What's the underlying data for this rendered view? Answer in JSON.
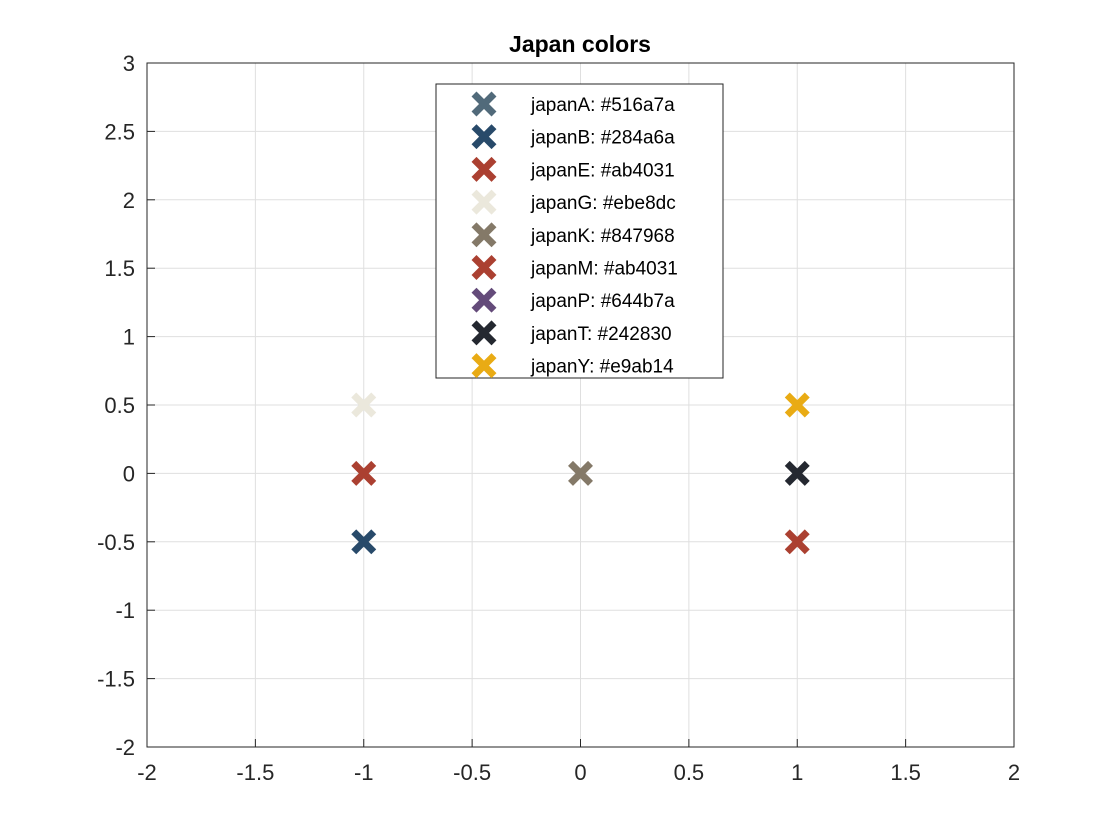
{
  "chart_data": {
    "type": "scatter",
    "title": "Japan colors",
    "xlabel": "",
    "ylabel": "",
    "xlim": [
      -2,
      2
    ],
    "ylim": [
      -2,
      3
    ],
    "xticks": [
      "-2",
      "-1.5",
      "-1",
      "-0.5",
      "0",
      "0.5",
      "1",
      "1.5",
      "2"
    ],
    "yticks": [
      "-2",
      "-1.5",
      "-1",
      "-0.5",
      "0",
      "0.5",
      "1",
      "1.5",
      "2",
      "2.5",
      "3"
    ],
    "grid": true,
    "legend_position": "top-center",
    "marker": "x",
    "series": [
      {
        "name": "japanA: #516a7a",
        "color": "#516a7a",
        "x": [],
        "y": []
      },
      {
        "name": "japanB: #284a6a",
        "color": "#284a6a",
        "x": [
          -1
        ],
        "y": [
          -0.5
        ]
      },
      {
        "name": "japanE: #ab4031",
        "color": "#ab4031",
        "x": [
          1
        ],
        "y": [
          -0.5
        ]
      },
      {
        "name": "japanG: #ebe8dc",
        "color": "#ebe8dc",
        "x": [
          -1
        ],
        "y": [
          0.5
        ]
      },
      {
        "name": "japanK: #847968",
        "color": "#847968",
        "x": [
          0
        ],
        "y": [
          0
        ]
      },
      {
        "name": "japanM: #ab4031",
        "color": "#ab4031",
        "x": [
          -1
        ],
        "y": [
          0
        ]
      },
      {
        "name": "japanP: #644b7a",
        "color": "#644b7a",
        "x": [],
        "y": []
      },
      {
        "name": "japanT: #242830",
        "color": "#242830",
        "x": [
          1
        ],
        "y": [
          0
        ]
      },
      {
        "name": "japanY: #e9ab14",
        "color": "#e9ab14",
        "x": [
          1
        ],
        "y": [
          0.5
        ]
      }
    ]
  }
}
